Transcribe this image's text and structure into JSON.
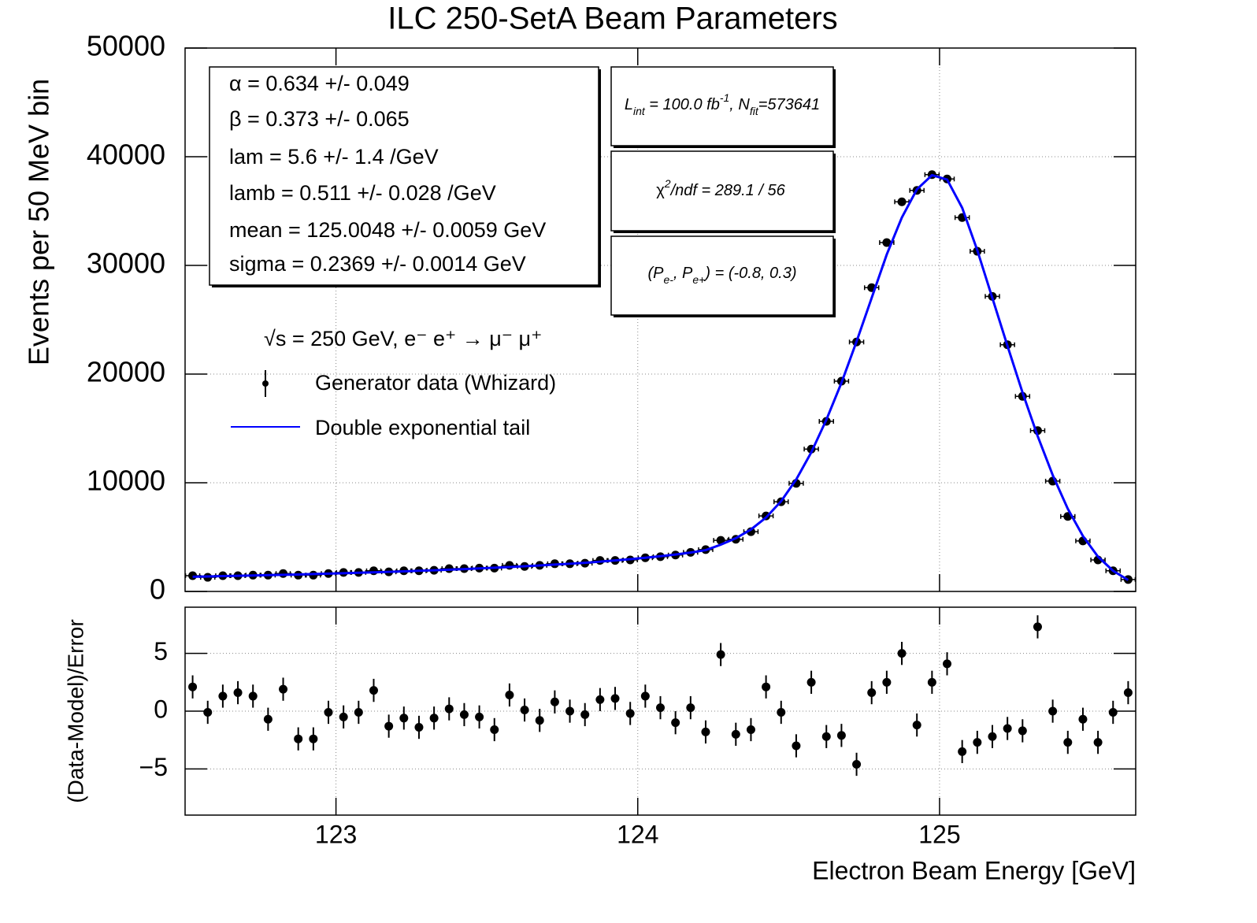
{
  "chart_data": [
    {
      "type": "scatter",
      "title": "ILC 250-SetA Beam Parameters",
      "y_label": "Events per 50 MeV bin",
      "x": [
        122.525,
        122.575,
        122.625,
        122.675,
        122.725,
        122.775,
        122.825,
        122.875,
        122.925,
        122.975,
        123.025,
        123.075,
        123.125,
        123.175,
        123.225,
        123.275,
        123.325,
        123.375,
        123.425,
        123.475,
        123.525,
        123.575,
        123.625,
        123.675,
        123.725,
        123.775,
        123.825,
        123.875,
        123.925,
        123.975,
        124.025,
        124.075,
        124.125,
        124.175,
        124.225,
        124.275,
        124.325,
        124.375,
        124.425,
        124.475,
        124.525,
        124.575,
        124.625,
        124.675,
        124.725,
        124.775,
        124.825,
        124.875,
        124.925,
        124.975,
        125.025,
        125.075,
        125.125,
        125.175,
        125.225,
        125.275,
        125.325,
        125.375,
        125.425,
        125.475,
        125.525,
        125.575,
        125.625
      ],
      "series": [
        {
          "name": "Generator data (Whizard)",
          "color": "#000000",
          "type": "points",
          "values": [
            1450,
            1300,
            1450,
            1450,
            1500,
            1500,
            1650,
            1500,
            1500,
            1650,
            1750,
            1750,
            1900,
            1800,
            1900,
            1900,
            1950,
            2100,
            2100,
            2150,
            2150,
            2400,
            2300,
            2400,
            2550,
            2550,
            2600,
            2850,
            2850,
            2900,
            3100,
            3200,
            3350,
            3600,
            3850,
            4700,
            4800,
            5500,
            6950,
            8250,
            9950,
            13100,
            15650,
            19350,
            22950,
            27950,
            32100,
            35850,
            36900,
            38350,
            37950,
            34400,
            31300,
            27150,
            22700,
            17950,
            14800,
            10150,
            6900,
            4650,
            2900,
            1900,
            1100
          ]
        },
        {
          "name": "Double exponential tail",
          "color": "#0000ff",
          "type": "line",
          "values": [
            1350,
            1380,
            1410,
            1440,
            1470,
            1500,
            1530,
            1560,
            1600,
            1640,
            1680,
            1720,
            1760,
            1800,
            1850,
            1900,
            1950,
            2000,
            2060,
            2120,
            2180,
            2250,
            2320,
            2390,
            2470,
            2550,
            2640,
            2740,
            2850,
            2970,
            3100,
            3240,
            3400,
            3580,
            3800,
            4300,
            4900,
            5700,
            6800,
            8300,
            10300,
            12800,
            15800,
            19200,
            23000,
            27000,
            31000,
            34400,
            37000,
            38300,
            37900,
            35300,
            31400,
            27000,
            22600,
            18300,
            14300,
            10700,
            7600,
            5100,
            3200,
            1900,
            1050
          ]
        }
      ],
      "xlim": [
        122.5,
        125.65
      ],
      "ylim": [
        0,
        50000
      ],
      "yticks": [
        0,
        10000,
        20000,
        30000,
        40000,
        50000
      ],
      "grid": true,
      "legend_title": "√s = 250 GeV, e⁻ e⁺ → μ⁻ μ⁺",
      "fit_parameters": [
        "α =  0.634 +/- 0.049",
        "β =  0.373 +/- 0.065",
        "lam =  5.6 +/- 1.4 /GeV",
        "lamb =  0.511 +/- 0.028 /GeV",
        "mean =  125.0048 +/- 0.0059 GeV",
        "sigma =  0.2369 +/- 0.0014 GeV"
      ],
      "luminosity": [
        "L",
        "int",
        " = 100.0 fb",
        "-1",
        ", N",
        "fit",
        "=573641"
      ],
      "chi2": [
        "χ",
        "2",
        "/ndf =  289.1 /  56"
      ],
      "polarization": [
        "(P",
        "e-",
        ", P",
        "e+",
        ") = (-0.8, 0.3)"
      ]
    },
    {
      "type": "scatter",
      "y_label": "(Data-Model)/Error",
      "x_label": "Electron Beam Energy [GeV]",
      "x": [
        122.525,
        122.575,
        122.625,
        122.675,
        122.725,
        122.775,
        122.825,
        122.875,
        122.925,
        122.975,
        123.025,
        123.075,
        123.125,
        123.175,
        123.225,
        123.275,
        123.325,
        123.375,
        123.425,
        123.475,
        123.525,
        123.575,
        123.625,
        123.675,
        123.725,
        123.775,
        123.825,
        123.875,
        123.925,
        123.975,
        124.025,
        124.075,
        124.125,
        124.175,
        124.225,
        124.275,
        124.325,
        124.375,
        124.425,
        124.475,
        124.525,
        124.575,
        124.625,
        124.675,
        124.725,
        124.775,
        124.825,
        124.875,
        124.925,
        124.975,
        125.025,
        125.075,
        125.125,
        125.175,
        125.225,
        125.275,
        125.325,
        125.375,
        125.425,
        125.475,
        125.525,
        125.575,
        125.625
      ],
      "values": [
        2.1,
        -0.1,
        1.3,
        1.6,
        1.3,
        -0.7,
        1.9,
        -2.4,
        -2.4,
        -0.1,
        -0.5,
        -0.1,
        1.8,
        -1.3,
        -0.6,
        -1.4,
        -0.6,
        0.2,
        -0.3,
        -0.5,
        -1.6,
        1.4,
        0.1,
        -0.8,
        0.8,
        0,
        -0.3,
        1.0,
        1.1,
        -0.2,
        1.3,
        0.3,
        -1.0,
        0.3,
        -1.8,
        4.9,
        -2.0,
        -1.6,
        2.1,
        -0.1,
        -3.0,
        2.5,
        -2.2,
        -2.1,
        -4.6,
        1.6,
        2.5,
        5.0,
        -1.2,
        2.5,
        4.1,
        -3.5,
        -2.7,
        -2.2,
        -1.5,
        -1.7,
        7.3,
        0,
        -2.7,
        -0.7,
        -2.7,
        -0.1,
        1.6
      ],
      "error": 1,
      "color": "#000000",
      "xlim": [
        122.5,
        125.65
      ],
      "ylim": [
        -9,
        9
      ],
      "xticks": [
        123,
        124,
        125
      ],
      "yticks": [
        {
          "value": -5,
          "label": "−5"
        },
        0,
        5
      ],
      "grid": true
    }
  ]
}
